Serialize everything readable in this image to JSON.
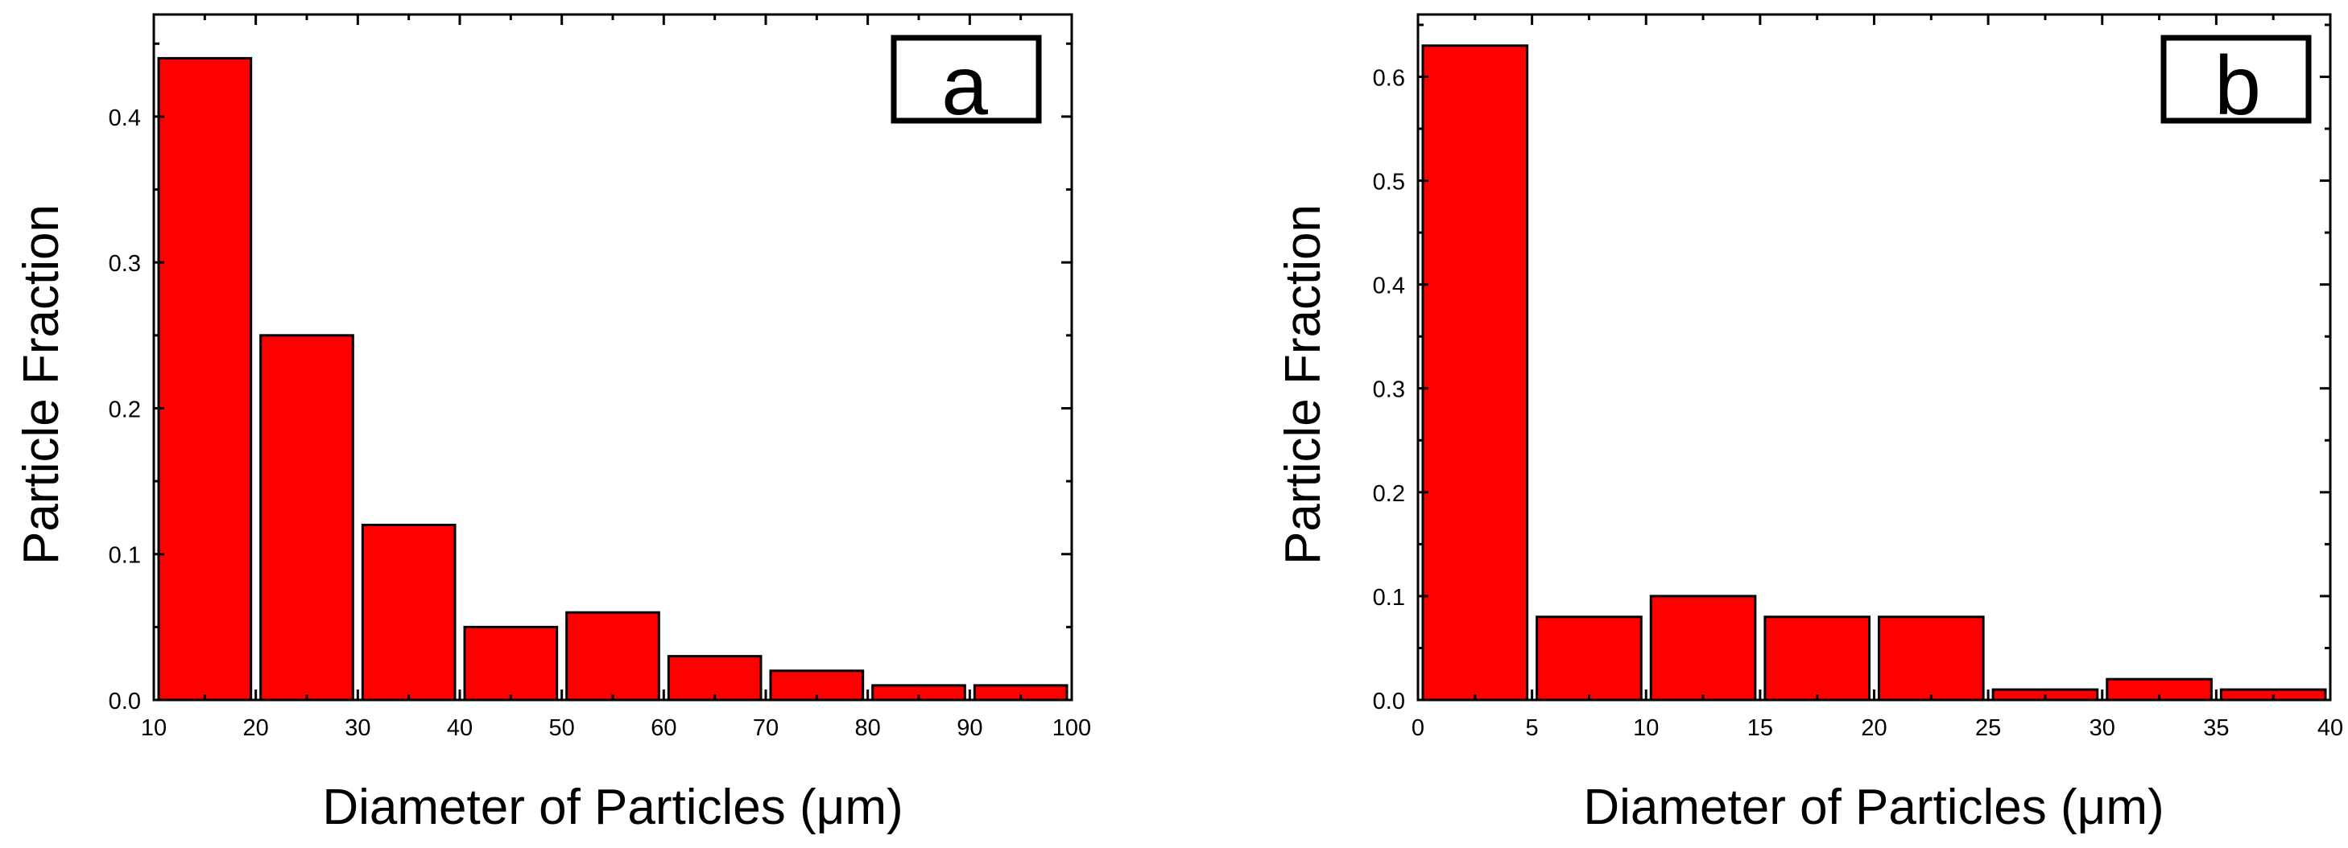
{
  "chart_data": [
    {
      "type": "bar",
      "panel_label": "a",
      "xlabel": "Diameter of Particles (μm)",
      "ylabel": "Particle Fraction",
      "xlim": [
        10,
        100
      ],
      "ylim": [
        0,
        0.47
      ],
      "xticks": [
        10,
        20,
        30,
        40,
        50,
        60,
        70,
        80,
        90,
        100
      ],
      "xtick_labels": [
        "10",
        "20",
        "30",
        "40",
        "50",
        "60",
        "70",
        "80",
        "90",
        "100"
      ],
      "yticks": [
        0,
        0.1,
        0.2,
        0.3,
        0.4
      ],
      "ytick_labels": [
        "0.0",
        "0.1",
        "0.2",
        "0.3",
        "0.4"
      ],
      "bins": [
        [
          10,
          20
        ],
        [
          20,
          30
        ],
        [
          30,
          40
        ],
        [
          40,
          50
        ],
        [
          50,
          60
        ],
        [
          60,
          70
        ],
        [
          70,
          80
        ],
        [
          80,
          90
        ],
        [
          90,
          100
        ]
      ],
      "values": [
        0.44,
        0.25,
        0.12,
        0.05,
        0.06,
        0.03,
        0.02,
        0.01,
        0.01
      ],
      "bar_color": "#ff0000",
      "grid": false,
      "legend": "none"
    },
    {
      "type": "bar",
      "panel_label": "b",
      "xlabel": "Diameter of Particles (μm)",
      "ylabel": "Particle Fraction",
      "xlim": [
        0,
        40
      ],
      "ylim": [
        0,
        0.66
      ],
      "xticks": [
        0,
        5,
        10,
        15,
        20,
        25,
        30,
        35,
        40
      ],
      "xtick_labels": [
        "0",
        "5",
        "10",
        "15",
        "20",
        "25",
        "30",
        "35",
        "40"
      ],
      "yticks": [
        0,
        0.1,
        0.2,
        0.3,
        0.4,
        0.5,
        0.6
      ],
      "ytick_labels": [
        "0.0",
        "0.1",
        "0.2",
        "0.3",
        "0.4",
        "0.5",
        "0.6"
      ],
      "bins": [
        [
          0,
          5
        ],
        [
          5,
          10
        ],
        [
          10,
          15
        ],
        [
          15,
          20
        ],
        [
          20,
          25
        ],
        [
          25,
          30
        ],
        [
          30,
          35
        ],
        [
          35,
          40
        ]
      ],
      "values": [
        0.63,
        0.08,
        0.1,
        0.08,
        0.08,
        0.01,
        0.02,
        0.01
      ],
      "bar_color": "#ff0000",
      "grid": false,
      "legend": "none"
    }
  ]
}
